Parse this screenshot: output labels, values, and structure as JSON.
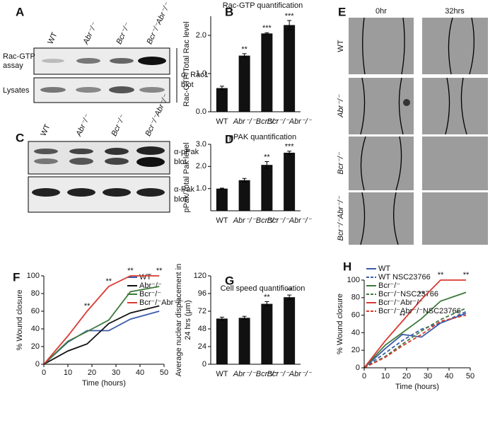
{
  "panel_labels": [
    "A",
    "B",
    "C",
    "D",
    "E",
    "F",
    "G",
    "H"
  ],
  "blot_a": {
    "columns": [
      "WT",
      "Abr⁻/⁻",
      "Bcr⁻/⁻",
      "Bcr⁻/⁻Abr⁻/⁻"
    ],
    "rows": [
      [
        "Rac-GTP",
        "assay"
      ],
      [
        "Lysates"
      ]
    ],
    "antibody": [
      "α- Rac1",
      "blot"
    ]
  },
  "blot_c": {
    "columns": [
      "WT",
      "Abr⁻/⁻",
      "Bcr⁻/⁻",
      "Bcr⁻/⁻Abr⁻/⁻"
    ],
    "antibodies": [
      [
        "α-pPak",
        "blot"
      ],
      [
        "α-Pak",
        "blot"
      ]
    ]
  },
  "wound_images": {
    "columns": [
      "0hr",
      "32hrs"
    ],
    "rows": [
      "WT",
      "Abr⁻/⁻",
      "Bcr⁻/⁻",
      "Bcr⁻/⁻Abr⁻/⁻"
    ]
  },
  "chart_data": [
    {
      "type": "bar",
      "title": "Rac-GTP quantification",
      "ylabel": [
        "Rac-GTP/Total Rac level"
      ],
      "categories": [
        "WT",
        "Abr⁻/⁻",
        "Bcr⁻/⁻",
        "Bcr⁻/⁻Abr⁻/⁻"
      ],
      "values": [
        0.62,
        1.47,
        2.05,
        2.27
      ],
      "errors": [
        0.05,
        0.05,
        0.02,
        0.12
      ],
      "significance": [
        null,
        "**",
        "***",
        "***"
      ],
      "color": "#111111",
      "ylim": [
        0,
        2.5
      ],
      "yticks": [
        {
          "value": 0,
          "label": "0.0"
        },
        {
          "value": 1,
          "label": "1.0"
        },
        {
          "value": 2,
          "label": "2.0"
        }
      ]
    },
    {
      "type": "bar",
      "title": "pPAK quantification",
      "ylabel": [
        "pPak/Total Pak level"
      ],
      "categories": [
        "WT",
        "Abr⁻/⁻",
        "Bcr⁻/⁻",
        "Bcr⁻/⁻Abr⁻/⁻"
      ],
      "values": [
        1.0,
        1.38,
        2.07,
        2.62
      ],
      "errors": [
        0.02,
        0.08,
        0.15,
        0.07
      ],
      "significance": [
        null,
        null,
        "**",
        "***"
      ],
      "color": "#111111",
      "ylim": [
        0,
        3
      ],
      "yticks": [
        {
          "value": 1,
          "label": "1.0"
        },
        {
          "value": 2,
          "label": "2.0"
        },
        {
          "value": 3,
          "label": "3.0"
        }
      ]
    },
    {
      "type": "line",
      "xlabel": "Time (hours)",
      "ylabel": [
        "% Wound closure"
      ],
      "x": [
        0,
        10,
        18,
        27,
        36,
        48
      ],
      "series": [
        {
          "name": "WT",
          "color": "#3a5ba8",
          "dashed": false,
          "values": [
            0,
            25,
            38,
            38,
            51,
            60
          ]
        },
        {
          "name": "Abr⁻/⁻",
          "color": "#111111",
          "dashed": false,
          "values": [
            0,
            15,
            23,
            46,
            58,
            66
          ]
        },
        {
          "name": "Bcr⁻/⁻",
          "color": "#3d7a3a",
          "dashed": false,
          "values": [
            0,
            26,
            37,
            50,
            82,
            88
          ]
        },
        {
          "name": "Bcr⁻/⁻Abr⁻/⁻",
          "color": "#d93a32",
          "dashed": false,
          "values": [
            0,
            32,
            60,
            88,
            100,
            100
          ]
        }
      ],
      "significance": [
        null,
        null,
        "**",
        "**",
        "**",
        "**"
      ],
      "xlim": [
        0,
        50
      ],
      "xticks": [
        0,
        10,
        20,
        30,
        40,
        50
      ],
      "ylim": [
        0,
        100
      ],
      "yticks": [
        0,
        20,
        40,
        60,
        80,
        100
      ]
    },
    {
      "type": "bar",
      "title": "Cell speed quantification",
      "ylabel": [
        "Average nuclear displacement in",
        "24 hrs (μm)"
      ],
      "categories": [
        "WT",
        "Abr⁻/⁻",
        "Bcr⁻/⁻",
        "Bcr⁻/⁻Abr⁻/⁻"
      ],
      "values": [
        62,
        63,
        82,
        91
      ],
      "errors": [
        2,
        2,
        3,
        3
      ],
      "significance": [
        null,
        null,
        "**",
        "**"
      ],
      "color": "#111111",
      "ylim": [
        0,
        120
      ],
      "yticks": [
        0,
        24,
        48,
        72,
        96,
        120
      ]
    },
    {
      "type": "line",
      "xlabel": "Time (hours)",
      "ylabel": [
        "% Wound closure"
      ],
      "x": [
        0,
        10,
        18,
        27,
        36,
        48
      ],
      "series": [
        {
          "name": "WT",
          "color": "#3a5ba8",
          "dashed": false,
          "values": [
            0,
            22,
            38,
            35,
            51,
            62
          ]
        },
        {
          "name": "WT NSC23766",
          "color": "#3a5ba8",
          "dashed": true,
          "values": [
            0,
            17,
            31,
            44,
            51,
            64
          ]
        },
        {
          "name": "Bcr⁻/⁻",
          "color": "#3d7a3a",
          "dashed": false,
          "values": [
            0,
            26,
            40,
            56,
            76,
            86
          ]
        },
        {
          "name": "Bcr⁻/⁻NSC23766",
          "color": "#3d7a3a",
          "dashed": true,
          "values": [
            0,
            13,
            27,
            42,
            55,
            68
          ]
        },
        {
          "name": "Bcr⁻/⁻Abr⁻/⁻",
          "color": "#d93a32",
          "dashed": false,
          "values": [
            0,
            31,
            53,
            78,
            100,
            100
          ]
        },
        {
          "name": "Bcr⁻/⁻Abr⁻/⁻NSC23766",
          "color": "#d93a32",
          "dashed": true,
          "values": [
            0,
            12,
            25,
            38,
            53,
            60
          ]
        }
      ],
      "significance": [
        null,
        null,
        "**",
        "**",
        "**",
        "**"
      ],
      "xlim": [
        0,
        50
      ],
      "xticks": [
        0,
        10,
        20,
        30,
        40,
        50
      ],
      "ylim": [
        0,
        100
      ],
      "yticks": [
        0,
        20,
        40,
        60,
        80,
        100
      ]
    }
  ]
}
